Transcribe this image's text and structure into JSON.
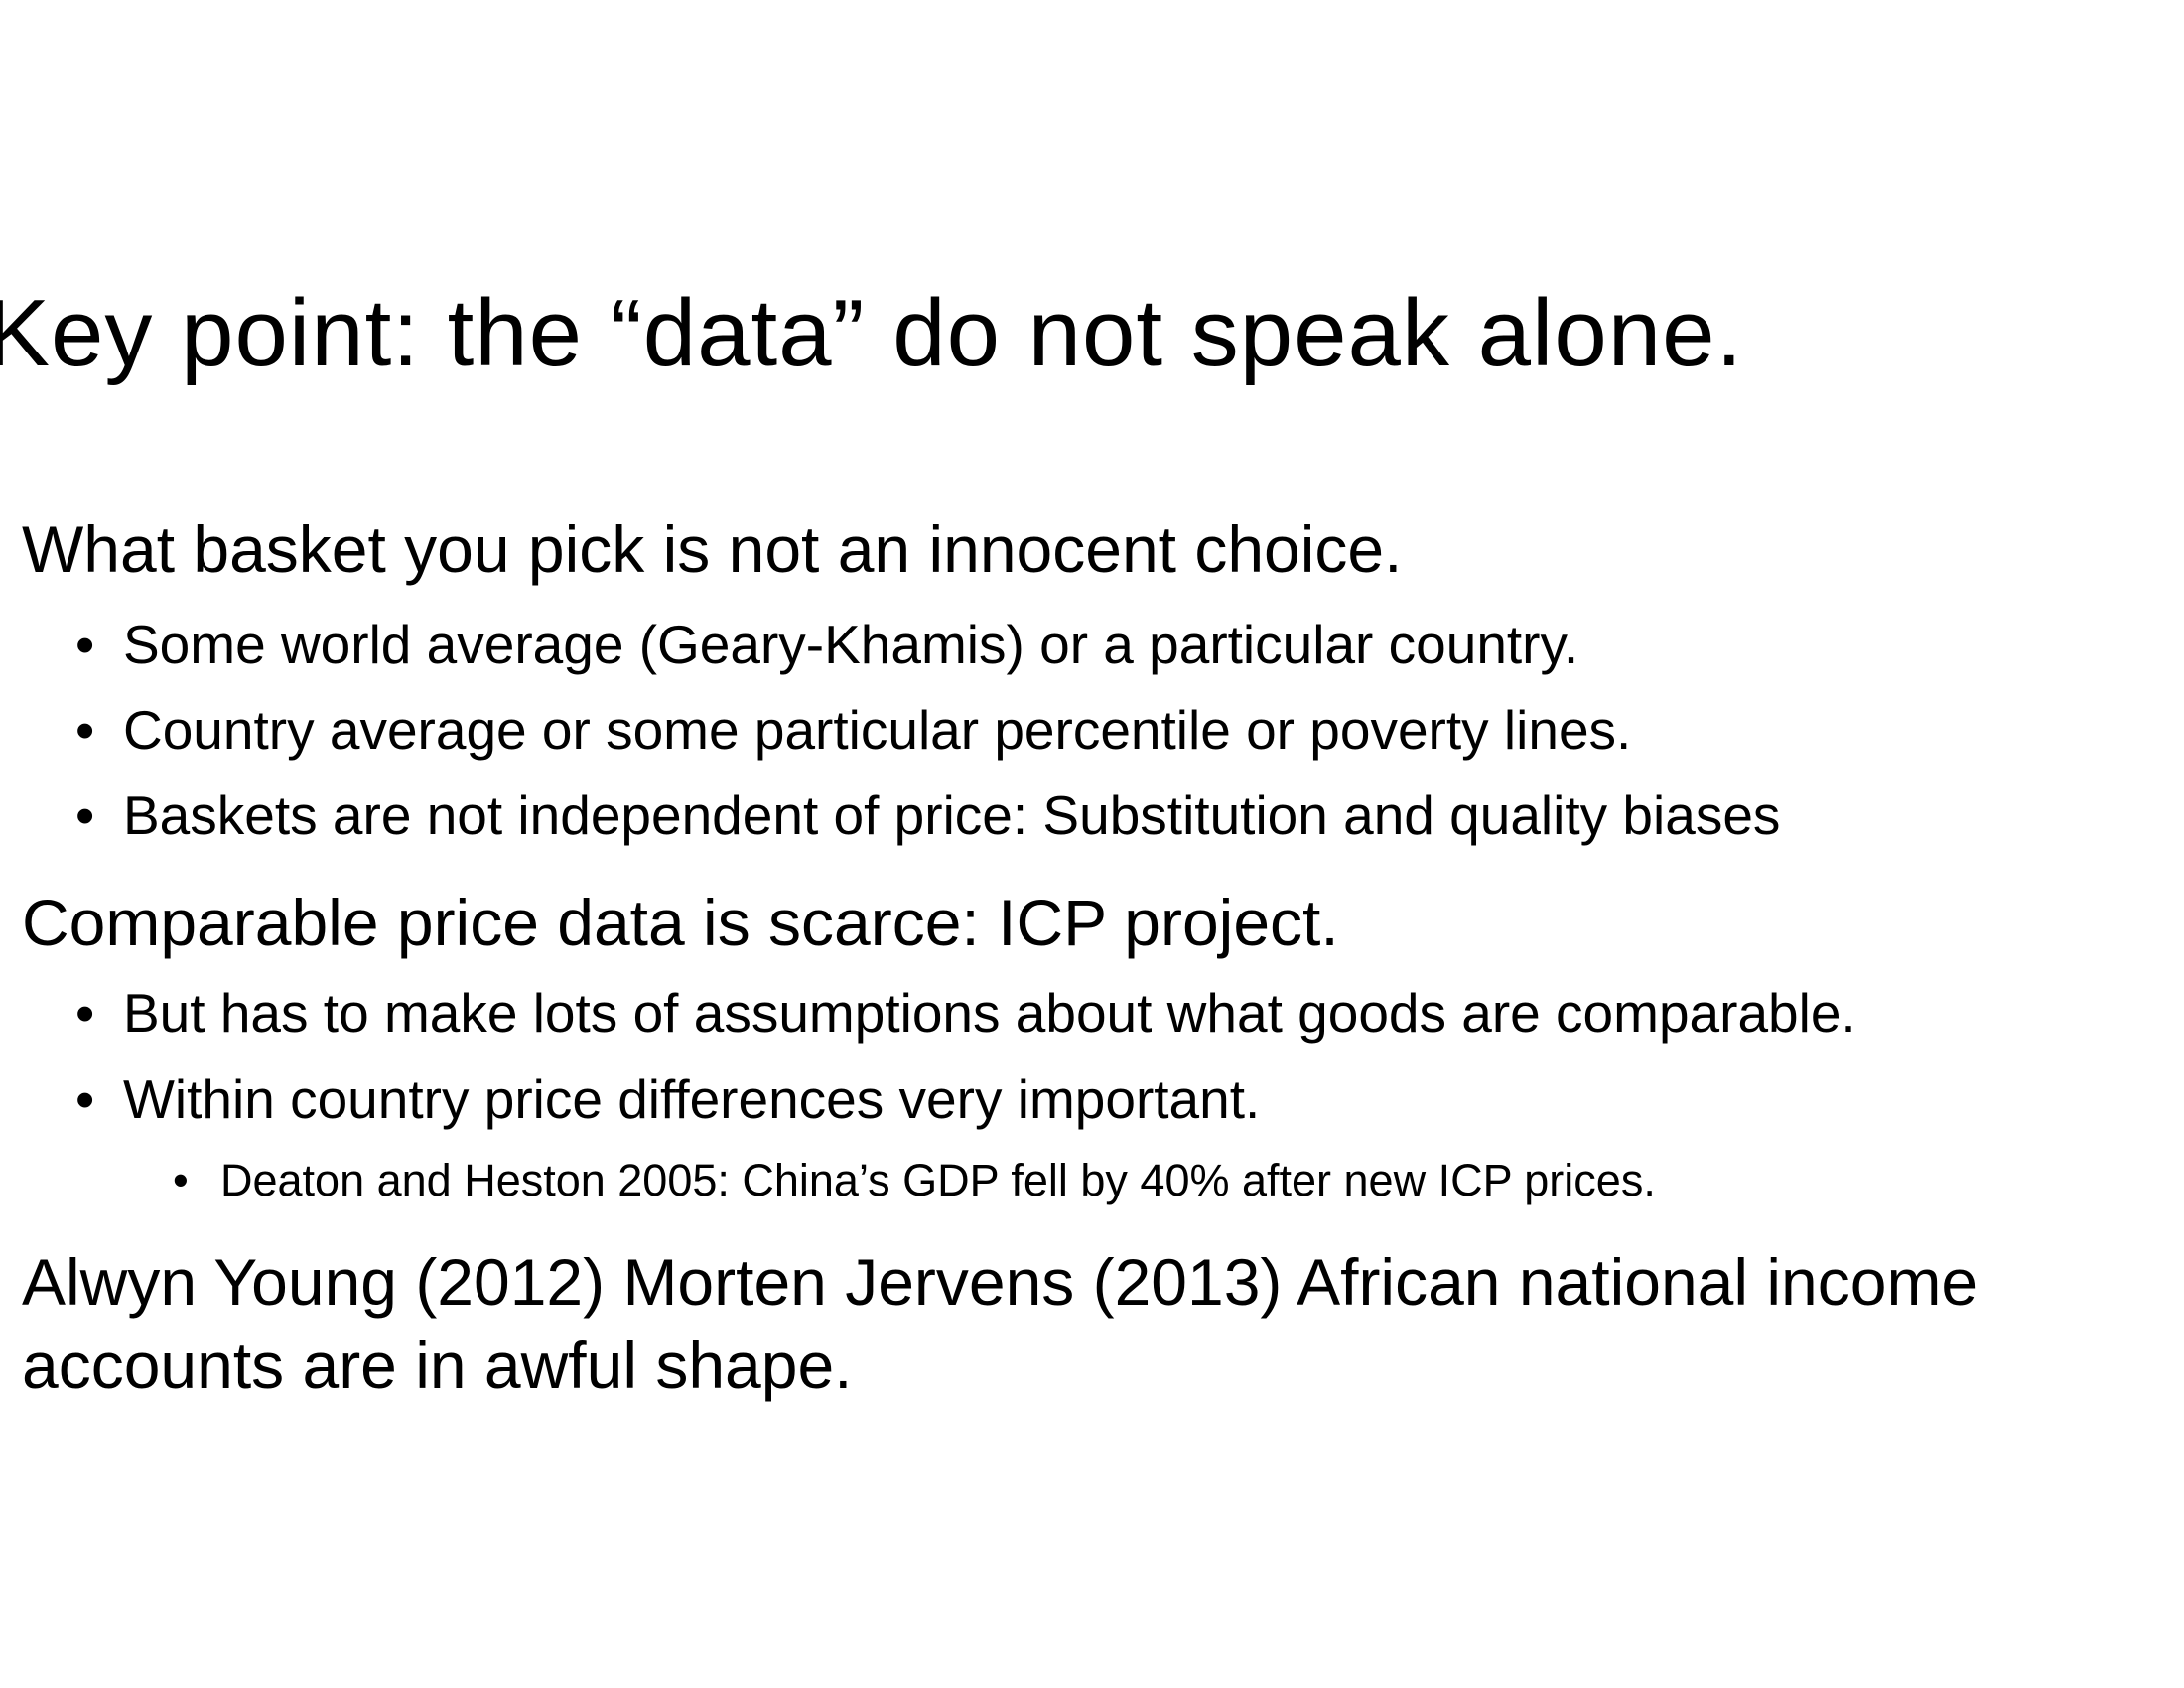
{
  "slide": {
    "title": "Key point: the “data” do not speak alone.",
    "bullet_glyph": "•",
    "point1": {
      "text": "What basket you pick is not an innocent choice.",
      "sub": [
        "Some world average (Geary-Khamis) or a particular country.",
        "Country average or some particular percentile or poverty lines.",
        "Baskets are not independent of price: Substitution and quality biases"
      ]
    },
    "point2": {
      "text": "Comparable price data is scarce: ICP project.",
      "sub": [
        "But has to make lots of assumptions about what goods are comparable.",
        "Within country price differences very important."
      ],
      "subsub": "Deaton and Heston 2005: China’s GDP fell by 40% after new ICP prices."
    },
    "point3": {
      "line1": "Alwyn Young (2012) Morten Jervens (2013) African national income",
      "line2": "accounts are in awful shape."
    }
  }
}
